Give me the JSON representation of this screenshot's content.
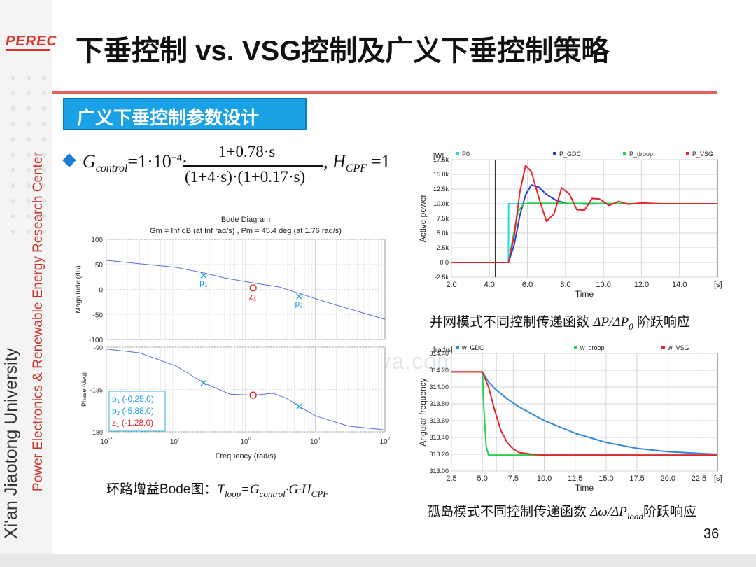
{
  "slide": {
    "logo": "PEREC",
    "title": "下垂控制 vs. VSG控制及广义下垂控制策略",
    "section": "广义下垂控制参数设计",
    "vertical_university": "Xi'an Jiaotong University",
    "vertical_center": "Power Electronics & Renewable Energy Research Center",
    "page_number": "36",
    "watermark": "www.niudunya.com"
  },
  "equation": {
    "G_symbol": "G",
    "G_sub": "control",
    "gain": "=1·10",
    "gain_exp": "−4",
    "numerator": "1+0.78·s",
    "denominator": "(1+4·s)·(1+0.17·s)",
    "H_symbol": "H",
    "H_sub": "CPF",
    "H_value": "=1"
  },
  "captions": {
    "bode_prefix": "环路增益Bode图：",
    "bode_T": "T",
    "bode_T_sub": "loop",
    "bode_eq": "=G",
    "bode_G_sub": "control",
    "bode_tail": "·G·H",
    "bode_H_sub": "CPF",
    "grid_prefix": "并网模式不同控制传递函数 ",
    "grid_formula": "ΔP/ΔP",
    "grid_formula_sub": "0",
    "grid_suffix": " 阶跃响应",
    "island_prefix": "孤岛模式不同控制传递函数 ",
    "island_formula": "Δω/ΔP",
    "island_formula_sub": "load",
    "island_suffix": "阶跃响应"
  },
  "chart_data": [
    {
      "type": "line",
      "id": "bode",
      "title": "Bode Diagram",
      "subtitle": "Gm = Inf dB (at Inf rad/s) ,  Pm = 45.4 deg (at 1.76 rad/s)",
      "xlabel": "Frequency  (rad/s)",
      "xscale": "log",
      "xlim": [
        0.01,
        100
      ],
      "x_ticks": [
        "10",
        "10",
        "10",
        "10",
        "10"
      ],
      "x_tick_exps": [
        "-2",
        "-1",
        "0",
        "1",
        "2"
      ],
      "magnitude": {
        "ylabel": "Magnitude (dB)",
        "ylim": [
          -100,
          100
        ],
        "y_ticks": [
          "100",
          "50",
          "0",
          "-50",
          "-100"
        ],
        "x": [
          0.01,
          0.1,
          0.25,
          0.5,
          1.28,
          3,
          5.88,
          15,
          100
        ],
        "y": [
          58,
          44,
          33,
          23,
          13,
          5,
          -8,
          -26,
          -60
        ]
      },
      "phase": {
        "ylabel": "Phase (deg)",
        "ylim": [
          -180,
          -90
        ],
        "y_ticks": [
          "-90",
          "-135",
          "-180"
        ],
        "x": [
          0.01,
          0.03,
          0.1,
          0.25,
          0.6,
          1.28,
          2.5,
          4,
          5.88,
          10,
          30,
          100
        ],
        "y": [
          -92,
          -96,
          -110,
          -128,
          -140,
          -141,
          -139,
          -145,
          -153,
          -163,
          -174,
          -178
        ]
      },
      "markers": [
        {
          "label": "p",
          "sub": "1",
          "kind": "pole",
          "x": 0.25,
          "mag": 28,
          "phase": -128
        },
        {
          "label": "z",
          "sub": "1",
          "kind": "zero",
          "x": 1.28,
          "mag": 3,
          "phase": -141
        },
        {
          "label": "p",
          "sub": "2",
          "kind": "pole",
          "x": 5.88,
          "mag": -14,
          "phase": -153
        }
      ],
      "legend_box": [
        {
          "text": "p",
          "sub": "1",
          "value": " (-0.25,0)",
          "color": "#1a9fd8"
        },
        {
          "text": "p",
          "sub": "2",
          "value": " (-5.88,0)",
          "color": "#1a9fd8"
        },
        {
          "text": "z",
          "sub": "1",
          "value": " (-1.28,0)",
          "color": "#e02020"
        }
      ],
      "colors": {
        "curve": "#5b6ee6",
        "pole": "#1a9fd8",
        "zero": "#e02020"
      }
    },
    {
      "type": "line",
      "id": "grid_power",
      "unit_label": "[W]",
      "ylabel": "Active power",
      "xlabel": "Time",
      "x_unit": "[s]",
      "xlim": [
        2.0,
        16.0
      ],
      "ylim": [
        -2500,
        17500
      ],
      "x_ticks": [
        "2.0",
        "4.0",
        "6.0",
        "8.0",
        "10.0",
        "12.0",
        "14.0"
      ],
      "y_ticks": [
        "17.5k",
        "15.0k",
        "12.5k",
        "10.0k",
        "7.5k",
        "5.0k",
        "2.5k",
        "0.0",
        "-2.5k"
      ],
      "vline_x": 4.3,
      "series": [
        {
          "name": "P0",
          "color": "#20d8f0",
          "x": [
            2,
            5.0,
            5.01,
            16
          ],
          "y": [
            0,
            0,
            10000,
            10000
          ]
        },
        {
          "name": "P_GDC",
          "color": "#1f3fd8",
          "x": [
            2,
            5.0,
            5.3,
            5.6,
            5.9,
            6.2,
            6.6,
            7.0,
            7.5,
            8.0,
            9.0,
            10.0,
            16
          ],
          "y": [
            0,
            0,
            3000,
            8000,
            11500,
            13200,
            12800,
            11600,
            10600,
            10100,
            9950,
            10000,
            10000
          ]
        },
        {
          "name": "P_droop",
          "color": "#21d24a",
          "x": [
            2,
            5.0,
            5.25,
            5.5,
            5.8,
            6.1,
            16
          ],
          "y": [
            0,
            0,
            4500,
            8600,
            10000,
            10100,
            10000
          ]
        },
        {
          "name": "P_VSG",
          "color": "#e8242a",
          "x": [
            2,
            5.0,
            5.3,
            5.6,
            5.9,
            6.2,
            6.6,
            7.0,
            7.4,
            7.8,
            8.2,
            8.6,
            9.0,
            9.4,
            9.8,
            10.3,
            10.8,
            11.3,
            12.0,
            13.0,
            16
          ],
          "y": [
            0,
            0,
            4500,
            12000,
            16500,
            15500,
            11000,
            7000,
            8300,
            12700,
            11700,
            9000,
            8900,
            10900,
            10800,
            9700,
            10400,
            9900,
            10150,
            10000,
            10000
          ]
        }
      ]
    },
    {
      "type": "line",
      "id": "island_freq",
      "unit_label": "[rad/s]",
      "ylabel": "Angular frequency",
      "xlabel": "Time",
      "x_unit": "[s]",
      "xlim": [
        2.5,
        24.0
      ],
      "ylim": [
        313.0,
        314.4
      ],
      "x_ticks": [
        "2.5",
        "5.0",
        "7.5",
        "10.0",
        "12.5",
        "15.0",
        "17.5",
        "20.0",
        "22.5"
      ],
      "y_ticks": [
        "314.40",
        "314.20",
        "314.00",
        "313.80",
        "313.60",
        "313.40",
        "313.20",
        "313.00"
      ],
      "vline_x": 6.1,
      "series": [
        {
          "name": "w_GDC",
          "color": "#2f86de",
          "x": [
            2.5,
            5.0,
            5.5,
            6.0,
            7.0,
            8.0,
            10.0,
            12.5,
            15.0,
            17.5,
            20.0,
            22.5,
            24.0
          ],
          "y": [
            314.18,
            314.18,
            314.06,
            313.98,
            313.86,
            313.76,
            313.6,
            313.45,
            313.34,
            313.27,
            313.23,
            313.21,
            313.2
          ]
        },
        {
          "name": "w_droop",
          "color": "#21d24a",
          "x": [
            2.5,
            5.0,
            5.1,
            5.3,
            5.5,
            24.0
          ],
          "y": [
            314.18,
            314.18,
            313.8,
            313.3,
            313.19,
            313.19
          ]
        },
        {
          "name": "w_VSG",
          "color": "#e8242a",
          "x": [
            2.5,
            5.0,
            5.5,
            6.0,
            6.5,
            7.0,
            7.5,
            8.0,
            9.0,
            10.0,
            24.0
          ],
          "y": [
            314.18,
            314.18,
            314.0,
            313.72,
            313.48,
            313.34,
            313.26,
            313.22,
            313.2,
            313.19,
            313.19
          ]
        }
      ]
    }
  ]
}
